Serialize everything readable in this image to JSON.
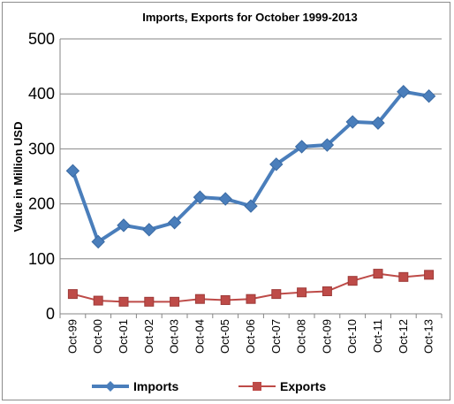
{
  "chart_data": {
    "type": "line",
    "title": "Imports, Exports for October 1999-2013",
    "xlabel": "",
    "ylabel": "Value in Million USD",
    "ylim": [
      0,
      500
    ],
    "yticks": [
      "0",
      "100",
      "200",
      "300",
      "400",
      "500"
    ],
    "grid": true,
    "legend_position": "bottom",
    "categories": [
      "Oct-99",
      "Oct-00",
      "Oct-01",
      "Oct-02",
      "Oct-03",
      "Oct-04",
      "Oct-05",
      "Oct-06",
      "Oct-07",
      "Oct-08",
      "Oct-09",
      "Oct-10",
      "Oct-11",
      "Oct-12",
      "Oct-13"
    ],
    "series": [
      {
        "name": "Imports",
        "color": "#4a7ebb",
        "marker": "diamond",
        "values": [
          260,
          131,
          161,
          153,
          166,
          212,
          209,
          196,
          272,
          304,
          307,
          349,
          347,
          404,
          396
        ]
      },
      {
        "name": "Exports",
        "color": "#be4b48",
        "marker": "square",
        "values": [
          36,
          24,
          22,
          22,
          22,
          27,
          25,
          27,
          36,
          39,
          41,
          60,
          73,
          67,
          71
        ]
      }
    ]
  }
}
